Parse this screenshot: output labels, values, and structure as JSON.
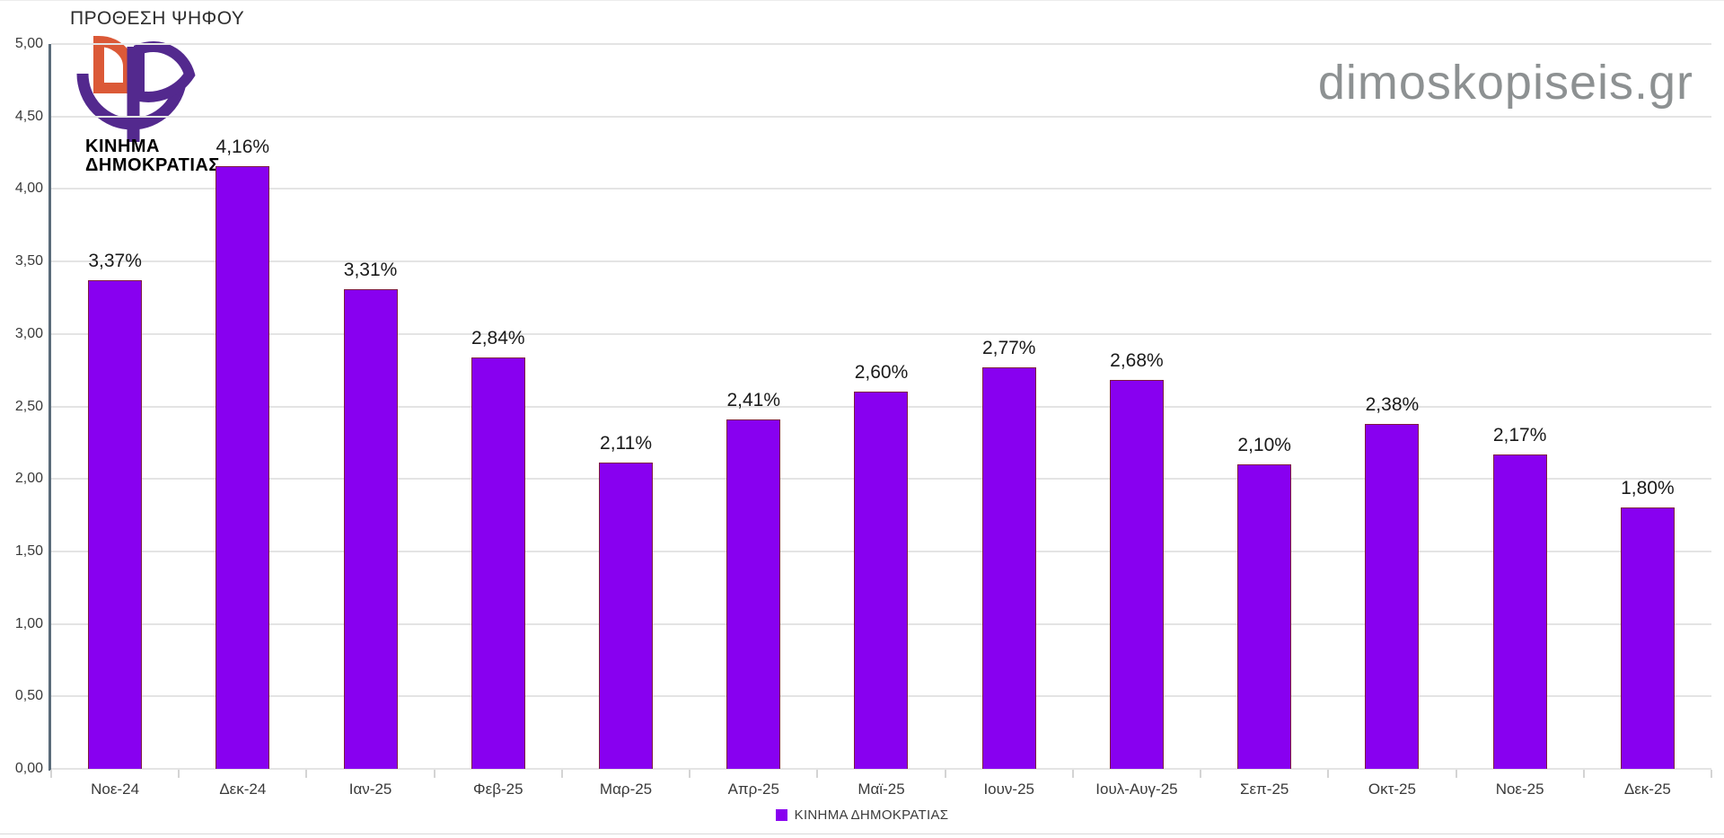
{
  "page": {
    "title": "ΠΡΟΘΕΣΗ ΨΗΦΟΥ",
    "watermark": "dimoskopiseis.gr"
  },
  "logo": {
    "line1": "ΚΙΝΗΜΑ",
    "line2": "ΔΗΜΟΚΡΑΤΙΑΣ"
  },
  "legend": {
    "label": "ΚΙΝΗΜΑ ΔΗΜΟΚΡΑΤΙΑΣ"
  },
  "colors": {
    "bar": "#8800F0",
    "bar_border": "#7E1B40",
    "axis": "#5A6B7A",
    "grid": "#E4E4E4",
    "tick": "#D4D4D4",
    "logo_purple": "#53298E",
    "logo_orange": "#DB5937",
    "logo_text": "#8A1FB4"
  },
  "chart_data": {
    "type": "bar",
    "title": "ΠΡΟΘΕΣΗ ΨΗΦΟΥ",
    "series_name": "ΚΙΝΗΜΑ ΔΗΜΟΚΡΑΤΙΑΣ",
    "categories": [
      "Νοε-24",
      "Δεκ-24",
      "Ιαν-25",
      "Φεβ-25",
      "Μαρ-25",
      "Απρ-25",
      "Μαϊ-25",
      "Ιουν-25",
      "Ιουλ-Αυγ-25",
      "Σεπ-25",
      "Οκτ-25",
      "Νοε-25",
      "Δεκ-25"
    ],
    "values": [
      3.37,
      4.16,
      3.31,
      2.84,
      2.11,
      2.41,
      2.6,
      2.77,
      2.68,
      2.1,
      2.38,
      2.17,
      1.8
    ],
    "value_labels": [
      "3,37%",
      "4,16%",
      "3,31%",
      "2,84%",
      "2,11%",
      "2,41%",
      "2,60%",
      "2,77%",
      "2,68%",
      "2,10%",
      "2,38%",
      "2,17%",
      "1,80%"
    ],
    "xlabel": "",
    "ylabel": "",
    "ylim": [
      0,
      5
    ],
    "ytick_values": [
      0,
      0.5,
      1,
      1.5,
      2,
      2.5,
      3,
      3.5,
      4,
      4.5,
      5
    ],
    "ytick_labels": [
      "0,00",
      "0,50",
      "1,00",
      "1,50",
      "2,00",
      "2,50",
      "3,00",
      "3,50",
      "4,00",
      "4,50",
      "5,00"
    ],
    "grid": true,
    "legend_position": "bottom"
  }
}
